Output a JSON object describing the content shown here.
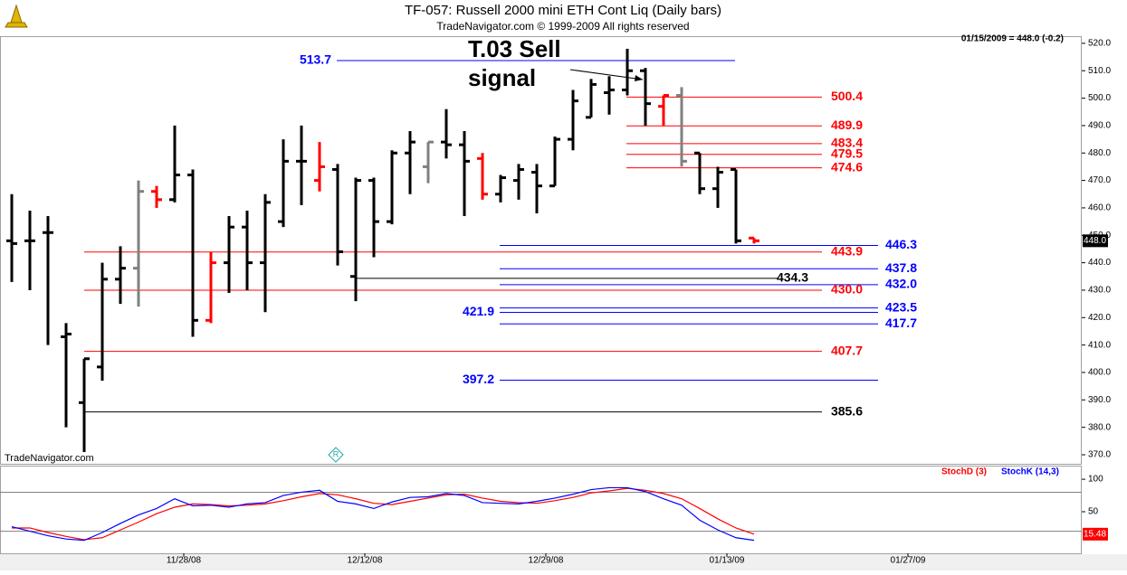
{
  "chart_data": [
    {
      "type": "ohlc",
      "title": "TF-057:  Russell 2000 mini ETH Cont Liq  (Daily bars)",
      "subtitle": "TradeNavigator.com © 1999-2009 All rights reserved",
      "as_of": "01/15/2009 = 448.0 (-0.2)",
      "annotations": [
        "T.03 Sell",
        "signal"
      ],
      "watermark": "TradeNavigator.com",
      "x": [
        0,
        1,
        2,
        3,
        4,
        5,
        6,
        7,
        8,
        9,
        10,
        11,
        12,
        13,
        14,
        15,
        16,
        17,
        18,
        19,
        20,
        21,
        22,
        23,
        24,
        25,
        26,
        27,
        28,
        29,
        30,
        31,
        32,
        33,
        34,
        35,
        36,
        37,
        38,
        39,
        40,
        41
      ],
      "open": [
        448,
        448,
        451,
        413,
        389,
        402,
        434,
        438,
        466,
        463,
        472,
        419,
        440,
        453,
        440,
        455,
        477,
        470,
        474,
        435,
        470,
        455,
        480,
        475,
        484,
        483,
        478,
        465,
        470,
        473,
        468,
        485,
        493,
        502,
        503,
        510,
        497,
        501,
        480,
        467,
        474,
        449
      ],
      "high": [
        465,
        459,
        457,
        418,
        405,
        440,
        446,
        470,
        468,
        490,
        474,
        444,
        457,
        459,
        465,
        485,
        490,
        484,
        476,
        471,
        471,
        481,
        488,
        484,
        496,
        488,
        480,
        472,
        476,
        476,
        486,
        503,
        507,
        508,
        518,
        511,
        501,
        504,
        480,
        475,
        474,
        449
      ],
      "low": [
        433,
        430,
        410,
        380,
        371,
        397,
        425,
        424,
        460,
        462,
        413,
        418,
        429,
        430,
        422,
        453,
        461,
        466,
        439,
        426,
        442,
        454,
        465,
        469,
        478,
        457,
        463,
        462,
        463,
        458,
        468,
        481,
        493,
        494,
        501,
        490,
        490,
        475,
        465,
        460,
        447,
        447
      ],
      "close": [
        447,
        448,
        451,
        414,
        405,
        434,
        438,
        466,
        463,
        472,
        419,
        440,
        453,
        440,
        462,
        477,
        477,
        475,
        444,
        470,
        455,
        480,
        484,
        484,
        483,
        477,
        465,
        471,
        474,
        468,
        485,
        499,
        505,
        503,
        510,
        498,
        501,
        477,
        467,
        473,
        448,
        448
      ],
      "colors": [
        "#000",
        "#000",
        "#000",
        "#000",
        "#000",
        "#000",
        "#000",
        "#808080",
        "#ff0000",
        "#000",
        "#000",
        "#ff0000",
        "#000",
        "#000",
        "#000",
        "#000",
        "#000",
        "#ff0000",
        "#000",
        "#000",
        "#000",
        "#000",
        "#000",
        "#808080",
        "#000",
        "#000",
        "#ff0000",
        "#000",
        "#000",
        "#000",
        "#000",
        "#000",
        "#000",
        "#000",
        "#000",
        "#000",
        "#ff0000",
        "#808080",
        "#000",
        "#000",
        "#000",
        "#ff0000"
      ],
      "levels": [
        {
          "value": 513.7,
          "color": "#0000ff"
        },
        {
          "value": 500.4,
          "color": "#ff0000"
        },
        {
          "value": 489.9,
          "color": "#ff0000"
        },
        {
          "value": 483.4,
          "color": "#ff0000"
        },
        {
          "value": 479.5,
          "color": "#ff0000"
        },
        {
          "value": 474.6,
          "color": "#ff0000"
        },
        {
          "value": 446.3,
          "color": "#0000ff"
        },
        {
          "value": 443.9,
          "color": "#ff0000"
        },
        {
          "value": 437.8,
          "color": "#0000ff"
        },
        {
          "value": 434.3,
          "color": "#000000"
        },
        {
          "value": 432,
          "label": "432.0",
          "color": "#0000ff"
        },
        {
          "value": 430,
          "label": "430.0",
          "color": "#ff0000"
        },
        {
          "value": 423.5,
          "color": "#0000ff"
        },
        {
          "value": 421.9,
          "color": "#0000ff"
        },
        {
          "value": 417.7,
          "color": "#0000ff"
        },
        {
          "value": 407.7,
          "color": "#ff0000"
        },
        {
          "value": 397.2,
          "color": "#0000ff"
        },
        {
          "value": 385.6,
          "color": "#000000"
        }
      ],
      "last_price": {
        "value": 448,
        "label": "448.0"
      },
      "xlim": [
        -0.65,
        59.1
      ],
      "ylim": [
        366.7,
        522.6
      ],
      "yticks": [
        {
          "value": 370,
          "label": "370.0"
        },
        {
          "value": 380,
          "label": "380.0"
        },
        {
          "value": 390,
          "label": "390.0"
        },
        {
          "value": 400,
          "label": "400.0"
        },
        {
          "value": 410,
          "label": "410.0"
        },
        {
          "value": 420,
          "label": "420.0"
        },
        {
          "value": 430,
          "label": "430.0"
        },
        {
          "value": 440,
          "label": "440.0"
        },
        {
          "value": 450,
          "label": "450.0"
        },
        {
          "value": 460,
          "label": "460.0"
        },
        {
          "value": 470,
          "label": "470.0"
        },
        {
          "value": 480,
          "label": "480.0"
        },
        {
          "value": 490,
          "label": "490.0"
        },
        {
          "value": 500,
          "label": "500.0"
        },
        {
          "value": 510,
          "label": "510.0"
        },
        {
          "value": 520,
          "label": "520.0"
        }
      ]
    },
    {
      "type": "line",
      "x": [
        0,
        1,
        2,
        3,
        4,
        5,
        6,
        7,
        8,
        9,
        10,
        11,
        12,
        13,
        14,
        15,
        16,
        17,
        18,
        19,
        20,
        21,
        22,
        23,
        24,
        25,
        26,
        27,
        28,
        29,
        30,
        31,
        32,
        33,
        34,
        35,
        36,
        37,
        38,
        39,
        40,
        41
      ],
      "series": [
        {
          "name": "StochD (3)",
          "color": "#ff0000",
          "values": [
            25,
            25,
            18,
            12,
            7,
            10,
            22,
            34,
            47,
            57,
            62,
            61,
            59,
            60,
            62,
            67,
            73,
            78,
            76,
            70,
            63,
            61,
            66,
            71,
            76,
            77,
            71,
            66,
            64,
            63,
            67,
            72,
            79,
            82,
            86,
            83,
            78,
            70,
            55,
            39,
            25,
            15.48
          ]
        },
        {
          "name": "StochK (14,3)",
          "color": "#0000ff",
          "values": [
            27,
            20,
            13,
            8,
            6,
            18,
            32,
            45,
            55,
            70,
            59,
            60,
            57,
            62,
            64,
            75,
            80,
            83,
            66,
            62,
            55,
            65,
            72,
            73,
            78,
            75,
            64,
            63,
            62,
            66,
            71,
            77,
            84,
            87,
            87,
            81,
            70,
            60,
            37,
            22,
            10,
            6
          ]
        }
      ],
      "last_value": 15.48,
      "xlim": [
        -0.65,
        59.1
      ],
      "ylim": [
        -14,
        121
      ],
      "yticks": [
        50,
        100
      ],
      "grid_values": [
        20,
        80
      ],
      "xticks": [
        {
          "value": 9.5,
          "label": "11/28/08"
        },
        {
          "value": 19.5,
          "label": "12/12/08"
        },
        {
          "value": 29.5,
          "label": "12/29/08"
        },
        {
          "value": 39.5,
          "label": "01/13/09"
        },
        {
          "value": 49.5,
          "label": "01/27/09"
        }
      ]
    }
  ]
}
